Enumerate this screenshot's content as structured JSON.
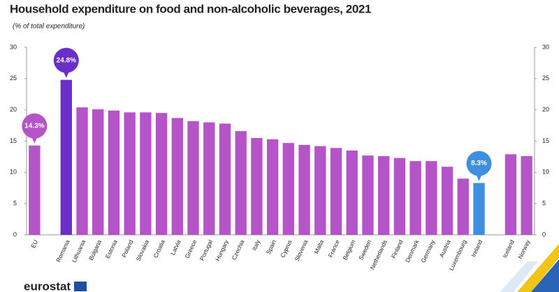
{
  "chart_data": {
    "type": "bar",
    "title": "Household expenditure on food and non-alcoholic beverages, 2021",
    "subtitle": "(% of total expenditure)",
    "source_logo": "eurostat",
    "categories": [
      "EU",
      null,
      "Romania",
      "Lithuania",
      "Bulgaria",
      "Estonia",
      "Poland",
      "Slovakia",
      "Croatia",
      "Latvia",
      "Greece",
      "Portugal",
      "Hungary",
      "Czechia",
      "Italy",
      "Spain",
      "Cyprus",
      "Slovenia",
      "Malta",
      "France",
      "Belgium",
      "Sweden",
      "Netherlands",
      "Finland",
      "Denmark",
      "Germany",
      "Austria",
      "Luxembourg",
      "Ireland",
      null,
      "Iceland",
      "Norway"
    ],
    "values": [
      14.3,
      null,
      24.8,
      20.4,
      20.1,
      19.9,
      19.6,
      19.6,
      19.5,
      18.7,
      18.2,
      18.0,
      17.8,
      16.6,
      15.5,
      15.3,
      14.7,
      14.4,
      14.2,
      13.9,
      13.5,
      12.7,
      12.6,
      12.3,
      11.8,
      11.8,
      10.9,
      9.0,
      8.3,
      null,
      12.9,
      12.6
    ],
    "value_labels": [
      "14.3%",
      null,
      "24.8%",
      null,
      null,
      null,
      null,
      null,
      null,
      null,
      null,
      null,
      null,
      null,
      null,
      null,
      null,
      null,
      null,
      null,
      null,
      null,
      null,
      null,
      null,
      null,
      null,
      null,
      "8.3%",
      null,
      null,
      null
    ],
    "color": "#b553c8",
    "colors": [
      "#b553c8",
      null,
      "#6a2ec9",
      "#b553c8",
      "#b553c8",
      "#b553c8",
      "#b553c8",
      "#b553c8",
      "#b553c8",
      "#b553c8",
      "#b553c8",
      "#b553c8",
      "#b553c8",
      "#b553c8",
      "#b553c8",
      "#b553c8",
      "#b553c8",
      "#b553c8",
      "#b553c8",
      "#b553c8",
      "#b553c8",
      "#b553c8",
      "#b553c8",
      "#b553c8",
      "#b553c8",
      "#b553c8",
      "#b553c8",
      "#b553c8",
      "#3f8fe0",
      null,
      "#b553c8",
      "#b553c8"
    ],
    "ylim": [
      0,
      30
    ],
    "yticks": [
      0,
      5,
      10,
      15,
      20,
      25,
      30
    ],
    "y2lim": [
      0,
      30
    ],
    "y2ticks": [
      0,
      5,
      10,
      15,
      20,
      25,
      30
    ],
    "grid": false
  }
}
